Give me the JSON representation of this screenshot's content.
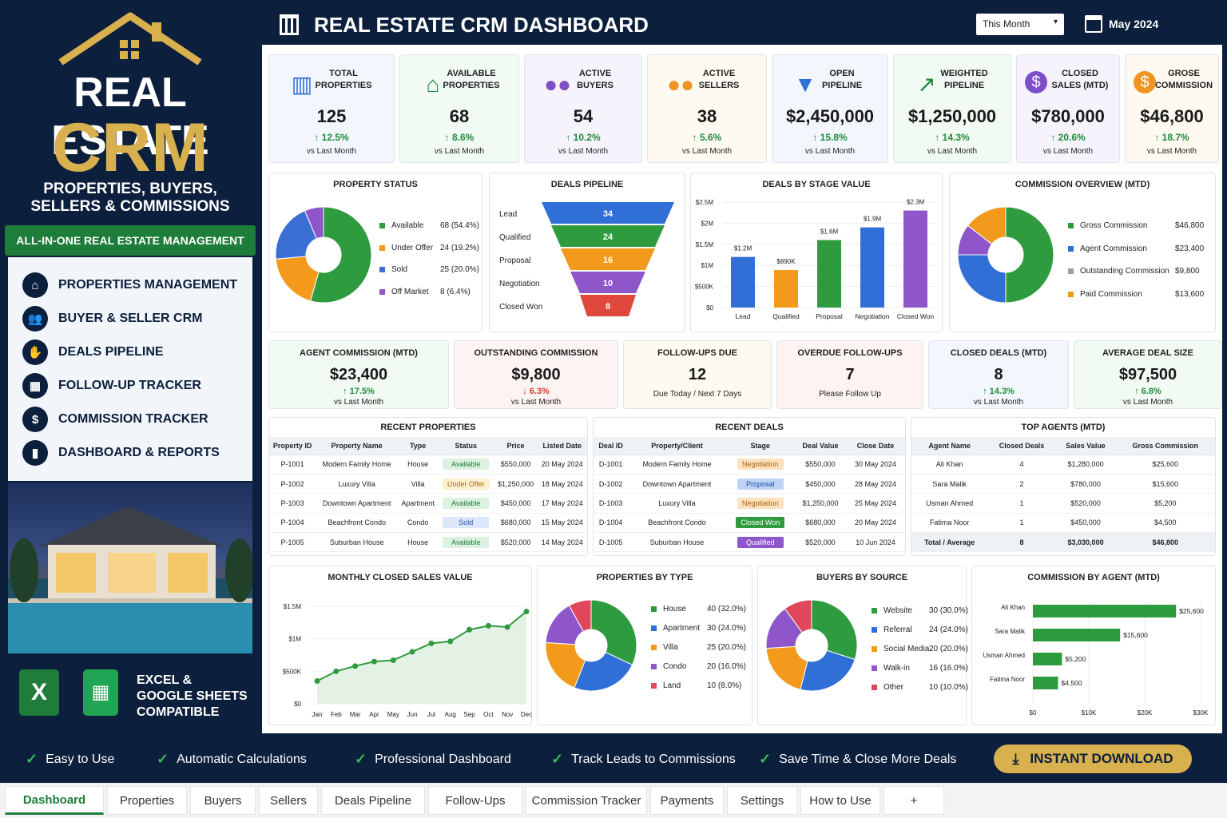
{
  "brand": {
    "title1": "REAL ESTATE",
    "title2": "CRM",
    "subtitle": "PROPERTIES, BUYERS, SELLERS & COMMISSIONS",
    "banner": "ALL-IN-ONE REAL ESTATE MANAGEMENT TOOL"
  },
  "menu": [
    {
      "label": "PROPERTIES MANAGEMENT",
      "icon": "home-icon"
    },
    {
      "label": "BUYER & SELLER CRM",
      "icon": "users-icon"
    },
    {
      "label": "DEALS PIPELINE",
      "icon": "handshake-icon"
    },
    {
      "label": "FOLLOW-UP TRACKER",
      "icon": "calendar-icon"
    },
    {
      "label": "COMMISSION TRACKER",
      "icon": "dollar-icon"
    },
    {
      "label": "DASHBOARD & REPORTS",
      "icon": "bar-chart-icon"
    }
  ],
  "excel": {
    "line1": "EXCEL &",
    "line2": "GOOGLE SHEETS",
    "line3": "COMPATIBLE"
  },
  "header": {
    "title": "REAL ESTATE CRM DASHBOARD",
    "period": "This Month",
    "date": "May 2024"
  },
  "kpis": [
    {
      "label1": "TOTAL",
      "label2": "PROPERTIES",
      "value": "125",
      "change": "12.5%",
      "sub": "vs Last Month",
      "icon": "building-icon",
      "color": "#2f6fd6",
      "bg": "#f3f7fd"
    },
    {
      "label1": "AVAILABLE",
      "label2": "PROPERTIES",
      "value": "68",
      "change": "8.6%",
      "sub": "vs Last Month",
      "icon": "house-icon",
      "color": "#1e8b3a",
      "bg": "#f2faf4"
    },
    {
      "label1": "ACTIVE",
      "label2": "BUYERS",
      "value": "54",
      "change": "10.2%",
      "sub": "vs Last Month",
      "icon": "buyers-icon",
      "color": "#7e4fc8",
      "bg": "#f7f3fc"
    },
    {
      "label1": "ACTIVE",
      "label2": "SELLERS",
      "value": "38",
      "change": "5.6%",
      "sub": "vs Last Month",
      "icon": "sellers-icon",
      "color": "#f0951f",
      "bg": "#fef9f1"
    },
    {
      "label1": "OPEN",
      "label2": "PIPELINE",
      "value": "$2,450,000",
      "change": "15.8%",
      "sub": "vs Last Month",
      "icon": "funnel-icon",
      "color": "#2f6fd6",
      "bg": "#f3f7fd"
    },
    {
      "label1": "WEIGHTED",
      "label2": "PIPELINE",
      "value": "$1,250,000",
      "change": "14.3%",
      "sub": "vs Last Month",
      "icon": "trend-icon",
      "color": "#1e8b3a",
      "bg": "#f2faf4"
    },
    {
      "label1": "CLOSED",
      "label2": "SALES (MTD)",
      "value": "$780,000",
      "change": "20.6%",
      "sub": "vs Last Month",
      "icon": "dollar-circle-icon",
      "color": "#7e4fc8",
      "bg": "#f7f3fc"
    },
    {
      "label1": "GROSE",
      "label2": "COMMISSION",
      "value": "$46,800",
      "change": "18.7%",
      "sub": "vs Last Month",
      "icon": "coin-icon",
      "color": "#f0951f",
      "bg": "#fef9f1"
    }
  ],
  "property_status": {
    "title": "PROPERTY STATUS",
    "items": [
      {
        "label": "Available",
        "value": "68 (54.4%)",
        "color": "#2e9b3f"
      },
      {
        "label": "Under Offer",
        "value": "24 (19.2%)",
        "color": "#f39a1d"
      },
      {
        "label": "Sold",
        "value": "25 (20.0%)",
        "color": "#3b6fd6"
      },
      {
        "label": "Off Market",
        "value": "8 (6.4%)",
        "color": "#8e56c9"
      }
    ]
  },
  "deals_pipeline": {
    "title": "DEALS PIPELINE",
    "stages": [
      {
        "label": "Lead",
        "value": "34",
        "color": "#2f6fd6"
      },
      {
        "label": "Qualified",
        "value": "24",
        "color": "#2e9b3f"
      },
      {
        "label": "Proposal",
        "value": "16",
        "color": "#f39a1d"
      },
      {
        "label": "Negotiation",
        "value": "10",
        "color": "#8e56c9"
      },
      {
        "label": "Closed Won",
        "value": "8",
        "color": "#e0473c"
      }
    ]
  },
  "chart_data": [
    {
      "type": "bar",
      "title": "DEALS BY STAGE VALUE",
      "categories": [
        "Lead",
        "Qualified",
        "Proposal",
        "Negotiation",
        "Closed Won"
      ],
      "values": [
        1200000,
        890000,
        1600000,
        1900000,
        2300000
      ],
      "data_labels": [
        "$1.2M",
        "$890K",
        "$1.6M",
        "$1.9M",
        "$2.3M"
      ],
      "colors": [
        "#2f6fd6",
        "#f39a1d",
        "#2e9b3f",
        "#2f6fd6",
        "#8e56c9"
      ],
      "yticks": [
        "$0",
        "$500K",
        "$1M",
        "$1.5M",
        "$2M",
        "$2.5M"
      ],
      "ylim": [
        0,
        2500000
      ]
    },
    {
      "type": "area",
      "title": "MONTHLY CLOSED SALES VALUE",
      "categories": [
        "Jan",
        "Feb",
        "Mar",
        "Apr",
        "May",
        "Jun",
        "Jul",
        "Aug",
        "Sep",
        "Oct",
        "Nov",
        "Dec"
      ],
      "values": [
        350000,
        500000,
        580000,
        650000,
        670000,
        800000,
        930000,
        960000,
        1140000,
        1200000,
        1180000,
        1420000
      ],
      "yticks": [
        "$0",
        "$500K",
        "$1M",
        "$1.5M"
      ],
      "ylim": [
        0,
        1500000
      ]
    },
    {
      "type": "bar",
      "title": "COMMISSION BY AGENT (MTD)",
      "categories": [
        "Ali Khan",
        "Sara Malik",
        "Usman Ahmed",
        "Fatima Noor"
      ],
      "values": [
        25600,
        15600,
        5200,
        4500
      ],
      "data_labels": [
        "$25,600",
        "$15,600",
        "$5,200",
        "$4,500"
      ],
      "xticks": [
        "$0",
        "$10K",
        "$20K",
        "$30K"
      ],
      "xlim": [
        0,
        30000
      ]
    }
  ],
  "commission_overview": {
    "title": "COMMISSION OVERVIEW (MTD)",
    "items": [
      {
        "label": "Gross Commission",
        "value": "$46,800",
        "color": "#2e9b3f"
      },
      {
        "label": "Agent Commission",
        "value": "$23,400",
        "color": "#2f6fd6"
      },
      {
        "label": "Outstanding Commission",
        "value": "$9,800",
        "color": "#9aa0a8"
      },
      {
        "label": "Paid Commission",
        "value": "$13,600",
        "color": "#f39a1d"
      }
    ]
  },
  "mid_kpis": [
    {
      "label": "AGENT COMMISSION (MTD)",
      "value": "$23,400",
      "change": "17.5%",
      "sub": "vs Last Month",
      "dir": "up",
      "bg": "#f2faf4"
    },
    {
      "label": "OUTSTANDING COMMISSION",
      "value": "$9,800",
      "change": "6.3%",
      "sub": "vs Last Month",
      "dir": "down",
      "bg": "#fdf3f3"
    },
    {
      "label": "FOLLOW-UPS DUE",
      "value": "12",
      "note": "Due Today / Next 7 Days",
      "bg": "#fdfaf0"
    },
    {
      "label": "OVERDUE FOLLOW-UPS",
      "value": "7",
      "note": "Please Follow Up",
      "bg": "#fdf3f3"
    },
    {
      "label": "CLOSED DEALS (MTD)",
      "value": "8",
      "change": "14.3%",
      "sub": "vs Last Month",
      "dir": "up",
      "bg": "#f3f7fd"
    },
    {
      "label": "AVERAGE DEAL SIZE",
      "value": "$97,500",
      "change": "6.8%",
      "sub": "vs Last Month",
      "dir": "up",
      "bg": "#f2faf4"
    }
  ],
  "recent_properties": {
    "title": "RECENT PROPERTIES",
    "headers": [
      "Property ID",
      "Property Name",
      "Type",
      "Status",
      "Price",
      "Listed Date"
    ],
    "rows": [
      [
        "P-1001",
        "Modern Family Home",
        "House",
        "Available",
        "$550,000",
        "20 May 2024"
      ],
      [
        "P-1002",
        "Luxury Villa",
        "Villa",
        "Under Offer",
        "$1,250,000",
        "18 May 2024"
      ],
      [
        "P-1003",
        "Downtown Apartment",
        "Apartment",
        "Available",
        "$450,000",
        "17 May 2024"
      ],
      [
        "P-1004",
        "Beachfront Condo",
        "Condo",
        "Sold",
        "$680,000",
        "15 May 2024"
      ],
      [
        "P-1005",
        "Suburban House",
        "House",
        "Available",
        "$520,000",
        "14 May 2024"
      ]
    ]
  },
  "recent_deals": {
    "title": "RECENT DEALS",
    "headers": [
      "Deal ID",
      "Property/Client",
      "Stage",
      "Deal Value",
      "Close Date"
    ],
    "rows": [
      [
        "D-1001",
        "Modern Family Home",
        "Negotiation",
        "$550,000",
        "30 May 2024"
      ],
      [
        "D-1002",
        "Downtown Apartment",
        "Proposal",
        "$450,000",
        "28 May 2024"
      ],
      [
        "D-1003",
        "Luxury Villa",
        "Negotiation",
        "$1,250,000",
        "25 May 2024"
      ],
      [
        "D-1004",
        "Beachfront Condo",
        "Closed Won",
        "$680,000",
        "20 May 2024"
      ],
      [
        "D-1005",
        "Suburban House",
        "Qualified",
        "$520,000",
        "10 Jun 2024"
      ]
    ]
  },
  "top_agents": {
    "title": "TOP AGENTS (MTD)",
    "headers": [
      "Agent Name",
      "Closed Deals",
      "Sales Value",
      "Gross Commission"
    ],
    "rows": [
      [
        "Ali Khan",
        "4",
        "$1,280,000",
        "$25,600"
      ],
      [
        "Sara Malik",
        "2",
        "$780,000",
        "$15,600"
      ],
      [
        "Usman Ahmed",
        "1",
        "$520,000",
        "$5,200"
      ],
      [
        "Fatima Noor",
        "1",
        "$450,000",
        "$4,500"
      ]
    ],
    "total": [
      "Total / Average",
      "8",
      "$3,030,000",
      "$46,800"
    ]
  },
  "properties_by_type": {
    "title": "PROPERTIES BY TYPE",
    "items": [
      {
        "label": "House",
        "value": "40 (32.0%)",
        "color": "#2e9b3f"
      },
      {
        "label": "Apartment",
        "value": "30 (24.0%)",
        "color": "#2f6fd6"
      },
      {
        "label": "Villa",
        "value": "25 (20.0%)",
        "color": "#f39a1d"
      },
      {
        "label": "Condo",
        "value": "20 (16.0%)",
        "color": "#8e56c9"
      },
      {
        "label": "Land",
        "value": "10 (8.0%)",
        "color": "#e0475a"
      }
    ]
  },
  "buyers_by_source": {
    "title": "BUYERS BY SOURCE",
    "items": [
      {
        "label": "Website",
        "value": "30 (30.0%)",
        "color": "#2e9b3f"
      },
      {
        "label": "Referral",
        "value": "24 (24.0%)",
        "color": "#2f6fd6"
      },
      {
        "label": "Social Media",
        "value": "20 (20.0%)",
        "color": "#f39a1d"
      },
      {
        "label": "Walk-in",
        "value": "16 (16.0%)",
        "color": "#8e56c9"
      },
      {
        "label": "Other",
        "value": "10 (10.0%)",
        "color": "#e0475a"
      }
    ]
  },
  "footer": {
    "features": [
      "Easy to Use",
      "Automatic Calculations",
      "Professional Dashboard",
      "Track Leads to Commissions",
      "Save Time & Close More Deals"
    ],
    "download": "INSTANT DOWNLOAD"
  },
  "tabs": [
    "Dashboard",
    "Properties",
    "Buyers",
    "Sellers",
    "Deals Pipeline",
    "Follow-Ups",
    "Commission Tracker",
    "Payments",
    "Settings",
    "How to Use",
    "+"
  ]
}
